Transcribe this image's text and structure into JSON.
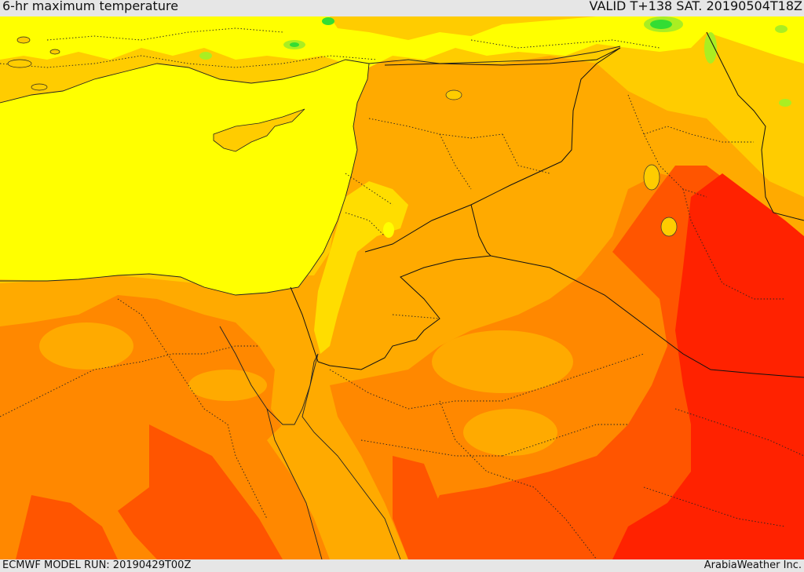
{
  "header": {
    "title": "6-hr maximum temperature",
    "valid_label": "VALID T+138 SAT. 20190504T18Z"
  },
  "footer": {
    "model_run": "ECMWF MODEL RUN: 20190429T00Z",
    "credit": "ArabiaWeather Inc."
  },
  "palette": {
    "green": "#33dd33",
    "light_green": "#aaee22",
    "yellow": "#ffff00",
    "light_orange": "#ffcc00",
    "orange": "#ffaa00",
    "dark_orange": "#ff8800",
    "red_orange": "#ff5500",
    "red": "#ff2200"
  }
}
